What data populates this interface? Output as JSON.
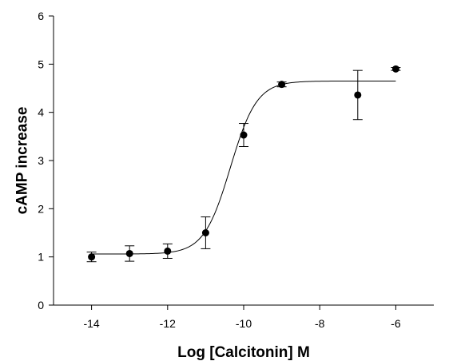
{
  "chart_data": {
    "type": "scatter",
    "title": "",
    "xlabel": "Log [Calcitonin] M",
    "ylabel": "cAMP increase",
    "xlim": [
      -15,
      -5
    ],
    "ylim": [
      0,
      6
    ],
    "x_ticks": [
      -14,
      -12,
      -10,
      -8,
      -6
    ],
    "y_ticks": [
      0,
      1,
      2,
      3,
      4,
      5,
      6
    ],
    "grid": false,
    "legend": "none",
    "marker_color": "#000000",
    "series": [
      {
        "x": [
          -14,
          -13,
          -12,
          -11,
          -10,
          -9,
          -7,
          -6
        ],
        "y": [
          1.0,
          1.07,
          1.12,
          1.5,
          3.53,
          4.58,
          4.36,
          4.9
        ],
        "error": [
          0.1,
          0.16,
          0.15,
          0.33,
          0.24,
          0.05,
          0.51,
          0.03
        ]
      }
    ],
    "fit_curve": {
      "model": "sigmoidal dose-response",
      "bottom": 1.06,
      "top": 4.65,
      "log_ec50": -10.35,
      "hill_slope": 1.25,
      "x_range": [
        -14,
        -6
      ]
    }
  }
}
